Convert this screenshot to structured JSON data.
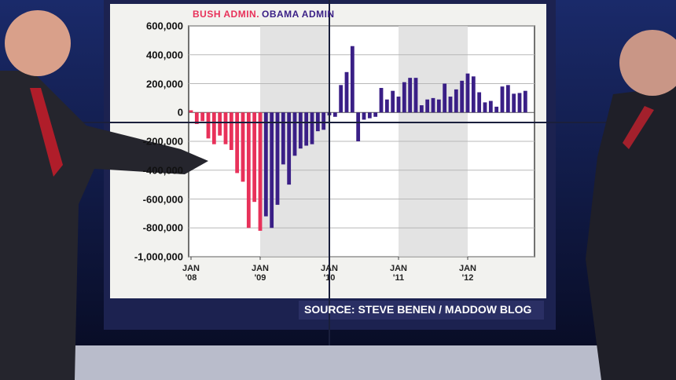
{
  "chart_data": {
    "type": "bar",
    "header_labels": [
      "BUSH ADMIN.",
      "OBAMA ADMIN"
    ],
    "source": "SOURCE: STEVE BENEN / MADDOW BLOG",
    "categories": [
      "JAN\n'08",
      null,
      null,
      null,
      null,
      null,
      null,
      null,
      null,
      null,
      null,
      null,
      "JAN\n'09",
      null,
      null,
      null,
      null,
      null,
      null,
      null,
      null,
      null,
      null,
      null,
      "JAN\n'10",
      null,
      null,
      null,
      null,
      null,
      null,
      null,
      null,
      null,
      null,
      null,
      "JAN\n'11",
      null,
      null,
      null,
      null,
      null,
      null,
      null,
      null,
      null,
      null,
      null,
      "JAN\n'12",
      null,
      null,
      null,
      null,
      null,
      null,
      null,
      null,
      null,
      null
    ],
    "series": [
      {
        "name": "BUSH ADMIN.",
        "color": "#e8315a",
        "values": [
          15000,
          -80000,
          -60000,
          -180000,
          -220000,
          -160000,
          -220000,
          -260000,
          -420000,
          -480000,
          -800000,
          -620000,
          -820000,
          null,
          null,
          null,
          null,
          null,
          null,
          null,
          null,
          null,
          null,
          null,
          null,
          null,
          null,
          null,
          null,
          null,
          null,
          null,
          null,
          null,
          null,
          null,
          null,
          null,
          null,
          null,
          null,
          null,
          null,
          null,
          null,
          null,
          null,
          null,
          null,
          null,
          null,
          null,
          null,
          null,
          null,
          null,
          null,
          null,
          null
        ]
      },
      {
        "name": "OBAMA ADMIN",
        "color": "#3a1f86",
        "values": [
          null,
          null,
          null,
          null,
          null,
          null,
          null,
          null,
          null,
          null,
          null,
          null,
          null,
          -720000,
          -800000,
          -640000,
          -360000,
          -500000,
          -300000,
          -250000,
          -230000,
          -220000,
          -130000,
          -120000,
          -20000,
          -30000,
          190000,
          280000,
          460000,
          -200000,
          -50000,
          -40000,
          -30000,
          170000,
          90000,
          150000,
          110000,
          210000,
          240000,
          240000,
          50000,
          90000,
          100000,
          90000,
          200000,
          110000,
          160000,
          220000,
          270000,
          250000,
          140000,
          70000,
          80000,
          40000,
          180000,
          190000,
          130000,
          135000,
          150000
        ]
      }
    ],
    "ylim": [
      -1000000,
      600000
    ],
    "yticks": [
      {
        "value": -1000000,
        "label": "-1,000,000"
      },
      {
        "value": -800000,
        "label": "-800,000"
      },
      {
        "value": -600000,
        "label": "-600,000"
      },
      {
        "value": -400000,
        "label": "-400,000"
      },
      {
        "value": -200000,
        "label": "-200,000"
      },
      0,
      {
        "value": 200000,
        "label": "200,000"
      },
      {
        "value": 400000,
        "label": "400,000"
      },
      {
        "value": 600000,
        "label": "600,000"
      }
    ],
    "grid": true
  }
}
